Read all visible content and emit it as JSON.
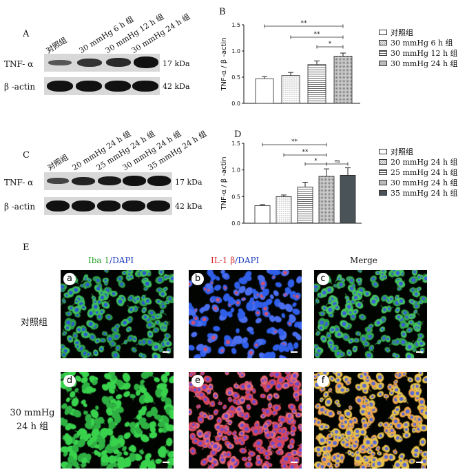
{
  "panelA": {
    "letter": "A",
    "columns": [
      "对照组",
      "30 mmHg 6 h 组",
      "30 mmHg 12 h 组",
      "30 mmHg 24 h 组"
    ],
    "rows": [
      {
        "label": "TNF- α",
        "kda": "17 kDa"
      },
      {
        "label": "β -actin",
        "kda": "42 kDa"
      }
    ]
  },
  "panelC": {
    "letter": "C",
    "columns": [
      "对照组",
      "20 mmHg 24 h 组",
      "25 mmHg 24 h 组",
      "30 mmHg 24 h 组",
      "35 mmHg 24 h 组"
    ],
    "rows": [
      {
        "label": "TNF- α",
        "kda": "17 kDa"
      },
      {
        "label": "β -actin",
        "kda": "42 kDa"
      }
    ]
  },
  "chart_data": [
    {
      "panel": "B",
      "type": "bar",
      "ylabel": "TNF-α / β -actin",
      "ylim": [
        0,
        1.5
      ],
      "yticks": [
        "0.0",
        "0.5",
        "1.0",
        "1.5"
      ],
      "categories": [
        "对照组",
        "30 mmHg 6 h 组",
        "30 mmHg 12 h 组",
        "30 mmHg 24 h 组"
      ],
      "values": [
        0.47,
        0.53,
        0.74,
        0.9
      ],
      "errors": [
        0.04,
        0.06,
        0.07,
        0.06
      ],
      "patterns": [
        "white",
        "dots",
        "hlines",
        "dense"
      ],
      "significance": [
        {
          "from": 0,
          "to": 3,
          "label": "**"
        },
        {
          "from": 1,
          "to": 3,
          "label": "**"
        },
        {
          "from": 2,
          "to": 3,
          "label": "*"
        }
      ],
      "grid": false
    },
    {
      "panel": "D",
      "type": "bar",
      "ylabel": "TNF-α / β -actin",
      "ylim": [
        0,
        1.5
      ],
      "yticks": [
        "0.0",
        "0.5",
        "1.0",
        "1.5"
      ],
      "categories": [
        "对照组",
        "20 mmHg 24 h 组",
        "25 mmHg 24 h 组",
        "30 mmHg 24 h 组",
        "35 mmHg 24 h 组"
      ],
      "values": [
        0.33,
        0.5,
        0.68,
        0.88,
        0.9
      ],
      "errors": [
        0.02,
        0.03,
        0.09,
        0.14,
        0.14
      ],
      "patterns": [
        "white",
        "dots",
        "hlines",
        "dense",
        "dark"
      ],
      "significance": [
        {
          "from": 0,
          "to": 3,
          "label": "**"
        },
        {
          "from": 1,
          "to": 3,
          "label": "**"
        },
        {
          "from": 2,
          "to": 3,
          "label": "*"
        },
        {
          "from": 3,
          "to": 4,
          "label": "ns"
        }
      ],
      "grid": false
    }
  ],
  "panelE": {
    "letter": "E",
    "col_headers": [
      {
        "part1": "Iba 1",
        "part2": "/DAPI",
        "color1": "#2ca02c",
        "color2": "#1f3fbf"
      },
      {
        "part1": "IL-1 β",
        "part2": "/DAPI",
        "color1": "#d62728",
        "color2": "#1f3fbf"
      },
      {
        "part1": "Merge",
        "part2": "",
        "color1": "#111111",
        "color2": "#111111"
      }
    ],
    "row_labels": [
      "对照组",
      "30 mmHg 24 h 组"
    ],
    "sub_labels": [
      "a",
      "b",
      "c",
      "d",
      "e",
      "f"
    ]
  },
  "letters": {
    "B": "B",
    "D": "D"
  }
}
